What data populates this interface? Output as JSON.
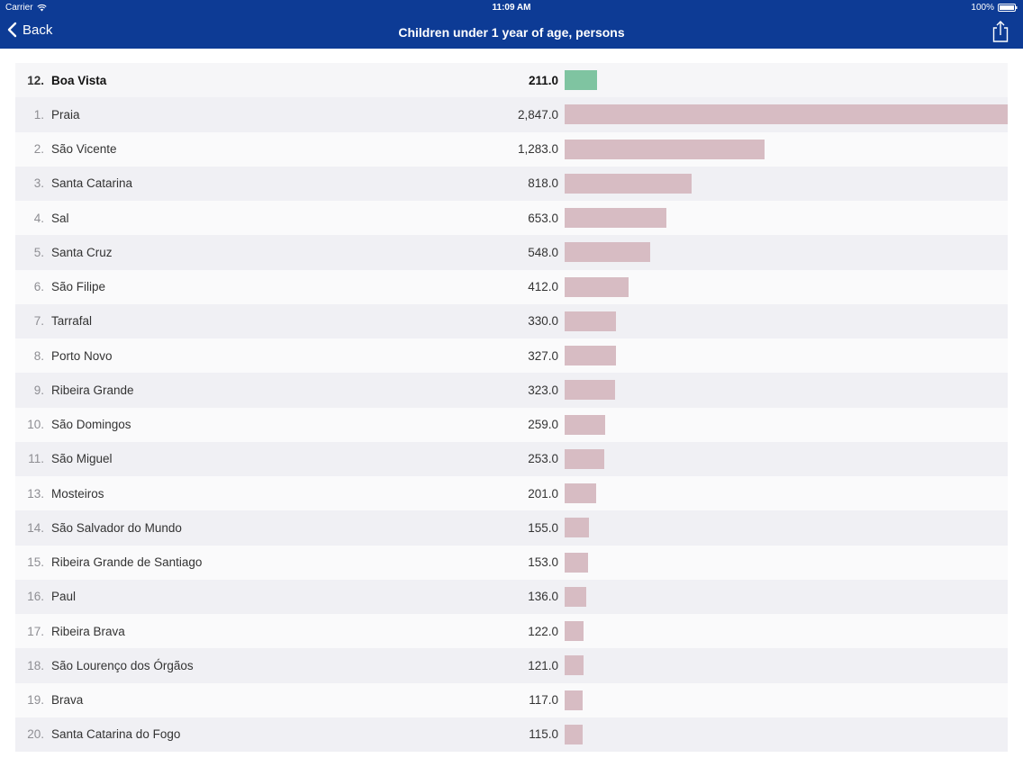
{
  "status": {
    "carrier": "Carrier",
    "time": "11:09 AM",
    "battery": "100%"
  },
  "nav": {
    "back_label": "Back",
    "title": "Children under 1 year of age, persons"
  },
  "colors": {
    "header_bg": "#0d3b95",
    "bar": "#d7bcc3",
    "highlight_bar": "#7fc4a1"
  },
  "chart_data": {
    "type": "bar",
    "title": "Children under 1 year of age, persons",
    "max_value": 2847.0,
    "highlight": {
      "rank": "12.",
      "name": "Boa Vista",
      "value": 211.0,
      "value_label": "211.0"
    },
    "rows": [
      {
        "rank": "1.",
        "name": "Praia",
        "value": 2847.0,
        "value_label": "2,847.0"
      },
      {
        "rank": "2.",
        "name": "São Vicente",
        "value": 1283.0,
        "value_label": "1,283.0"
      },
      {
        "rank": "3.",
        "name": "Santa Catarina",
        "value": 818.0,
        "value_label": "818.0"
      },
      {
        "rank": "4.",
        "name": "Sal",
        "value": 653.0,
        "value_label": "653.0"
      },
      {
        "rank": "5.",
        "name": "Santa Cruz",
        "value": 548.0,
        "value_label": "548.0"
      },
      {
        "rank": "6.",
        "name": "São Filipe",
        "value": 412.0,
        "value_label": "412.0"
      },
      {
        "rank": "7.",
        "name": "Tarrafal",
        "value": 330.0,
        "value_label": "330.0"
      },
      {
        "rank": "8.",
        "name": "Porto Novo",
        "value": 327.0,
        "value_label": "327.0"
      },
      {
        "rank": "9.",
        "name": "Ribeira Grande",
        "value": 323.0,
        "value_label": "323.0"
      },
      {
        "rank": "10.",
        "name": "São Domingos",
        "value": 259.0,
        "value_label": "259.0"
      },
      {
        "rank": "11.",
        "name": "São Miguel",
        "value": 253.0,
        "value_label": "253.0"
      },
      {
        "rank": "13.",
        "name": "Mosteiros",
        "value": 201.0,
        "value_label": "201.0"
      },
      {
        "rank": "14.",
        "name": "São Salvador do Mundo",
        "value": 155.0,
        "value_label": "155.0"
      },
      {
        "rank": "15.",
        "name": "Ribeira Grande de Santiago",
        "value": 153.0,
        "value_label": "153.0"
      },
      {
        "rank": "16.",
        "name": "Paul",
        "value": 136.0,
        "value_label": "136.0"
      },
      {
        "rank": "17.",
        "name": "Ribeira Brava",
        "value": 122.0,
        "value_label": "122.0"
      },
      {
        "rank": "18.",
        "name": "São Lourenço dos Órgãos",
        "value": 121.0,
        "value_label": "121.0"
      },
      {
        "rank": "19.",
        "name": "Brava",
        "value": 117.0,
        "value_label": "117.0"
      },
      {
        "rank": "20.",
        "name": "Santa Catarina do Fogo",
        "value": 115.0,
        "value_label": "115.0"
      }
    ]
  }
}
